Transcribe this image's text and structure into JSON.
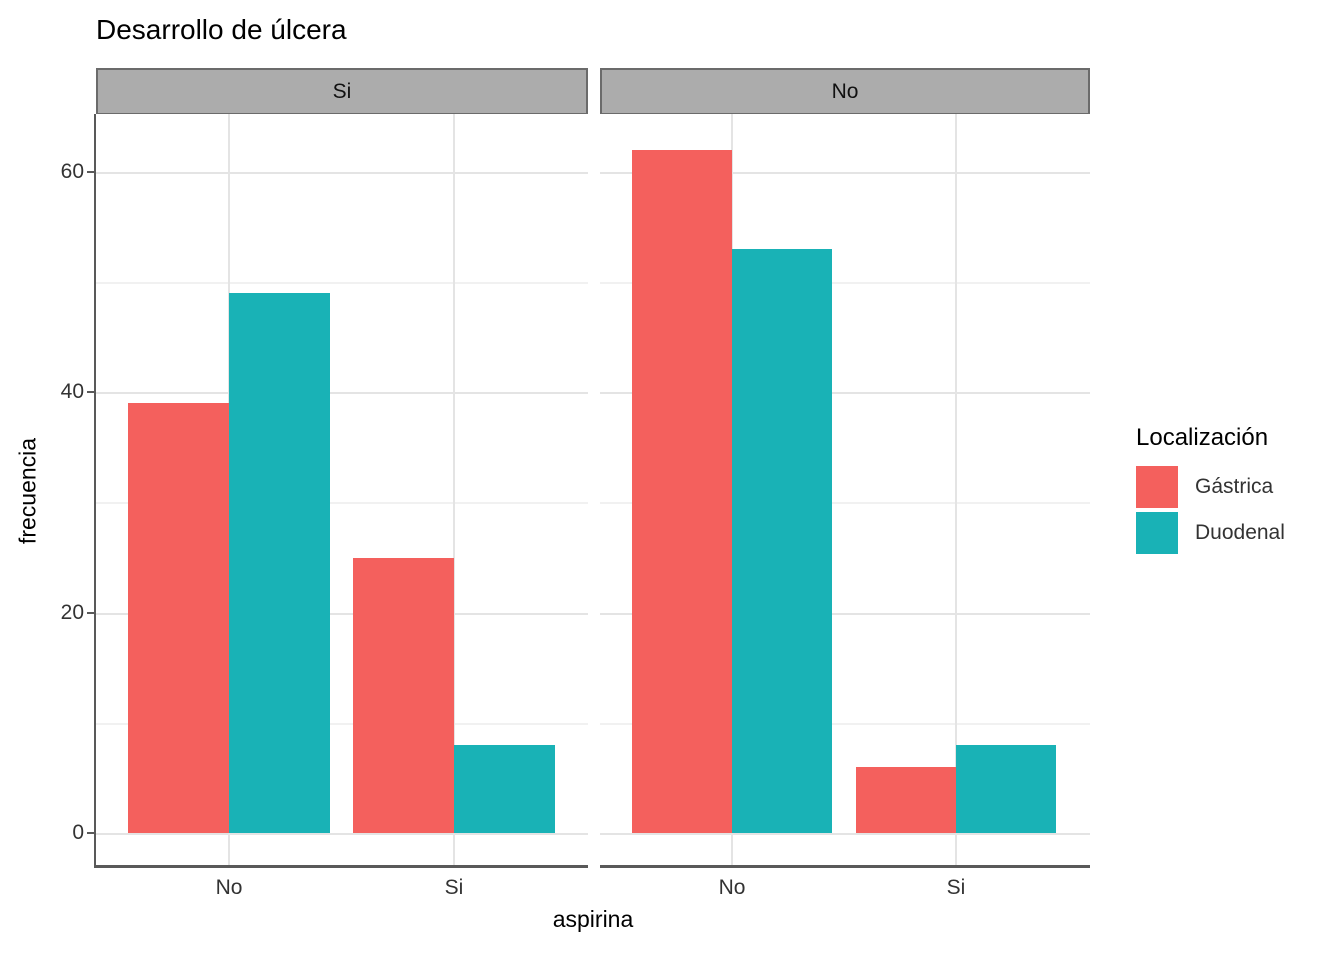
{
  "title": "Desarrollo de úlcera",
  "legend": {
    "title": "Localización",
    "items": [
      {
        "label": "Gástrica",
        "color": "#F4605D"
      },
      {
        "label": "Duodenal",
        "color": "#19B2B6"
      }
    ]
  },
  "colors": {
    "gastrica": "#F4605D",
    "duodenal": "#19B2B6",
    "strip_background": "#ACACAC",
    "strip_border": "#6B6B6B",
    "grid_major": "#E4E4E4",
    "grid_minor": "#F1F1F1",
    "axis_line": "#595959",
    "axis_text": "#333333",
    "background": "#FFFFFF"
  },
  "chart_data": {
    "type": "bar",
    "title": "Desarrollo de úlcera",
    "xlabel": "aspirina",
    "ylabel": "frecuencia",
    "facet_labels": [
      "Si",
      "No"
    ],
    "categories": [
      "No",
      "Si"
    ],
    "facets": [
      {
        "label": "Si",
        "series": [
          {
            "name": "Gástrica",
            "values": [
              39,
              25
            ]
          },
          {
            "name": "Duodenal",
            "values": [
              49,
              8
            ]
          }
        ]
      },
      {
        "label": "No",
        "series": [
          {
            "name": "Gástrica",
            "values": [
              62,
              6
            ]
          },
          {
            "name": "Duodenal",
            "values": [
              53,
              8
            ]
          }
        ]
      }
    ],
    "yticks": [
      0,
      20,
      40,
      60
    ],
    "minor_yticks": [
      10,
      30,
      50
    ],
    "ylim": [
      0,
      65
    ],
    "grid": true,
    "legend_position": "right",
    "legend_title": "Localización"
  }
}
